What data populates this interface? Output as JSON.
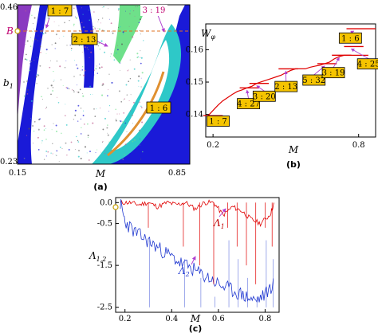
{
  "colors": {
    "red_series": "#e00000",
    "blue_series": "#2038d0",
    "label_box": "#f5c400",
    "arrow": "#b040d0",
    "map_blue": "#1a1ad8",
    "map_cyan": "#2ec8c8",
    "map_green": "#6ee08a",
    "map_orange": "#e09030"
  },
  "chart_data": [
    {
      "id": "a",
      "type": "heatmap",
      "panel_label": "(a)",
      "xlabel": "M",
      "ylabel": "b",
      "ylabel_sub": "1",
      "x_ticks": [
        "0.15",
        "0.85"
      ],
      "y_ticks": [
        "0.46",
        "0.23"
      ],
      "xlim": [
        0.15,
        0.85
      ],
      "ylim": [
        0.23,
        0.46
      ],
      "marker_label": "B",
      "marker_b1": 0.43,
      "region_labels": [
        "1 : 7",
        "2 : 13",
        "3 : 19",
        "1 : 6"
      ]
    },
    {
      "id": "b",
      "type": "line",
      "panel_label": "(b)",
      "xlabel": "M",
      "ylabel": "W",
      "ylabel_sub": "φ",
      "x_ticks": [
        "0.2",
        "0.8"
      ],
      "x_tick_values": [
        0.2,
        0.8
      ],
      "y_ticks": [
        "0.14",
        "0.15",
        "0.16"
      ],
      "y_tick_values": [
        0.14,
        0.15,
        0.16
      ],
      "xlim": [
        0.17,
        0.87
      ],
      "ylim": [
        0.133,
        0.168
      ],
      "series": [
        {
          "x": [
            0.18,
            0.2,
            0.22,
            0.24,
            0.26,
            0.28,
            0.3,
            0.32,
            0.34,
            0.36,
            0.38,
            0.4,
            0.42,
            0.44,
            0.46,
            0.48,
            0.5,
            0.52,
            0.54,
            0.56,
            0.58,
            0.6,
            0.62,
            0.64,
            0.66,
            0.68,
            0.7,
            0.72,
            0.74,
            0.76,
            0.78,
            0.8,
            0.82,
            0.84
          ],
          "y": [
            0.1396,
            0.1412,
            0.1428,
            0.1442,
            0.1452,
            0.1462,
            0.1471,
            0.1476,
            0.1482,
            0.1487,
            0.1496,
            0.1501,
            0.1506,
            0.1511,
            0.1516,
            0.1521,
            0.1529,
            0.1536,
            0.1541,
            0.1541,
            0.1541,
            0.1546,
            0.1549,
            0.1552,
            0.1557,
            0.1562,
            0.1572,
            0.1579,
            0.1583,
            0.1583,
            0.1583,
            0.1583,
            0.1583,
            0.1583
          ]
        }
      ],
      "plateaus": [
        {
          "label": "1 : 7",
          "y": 0.1396
        },
        {
          "label": "4 : 27",
          "y": 0.1482
        },
        {
          "label": "3 : 20",
          "y": 0.1496
        },
        {
          "label": "2 : 13",
          "y": 0.1541
        },
        {
          "label": "5 : 32",
          "y": 0.1557
        },
        {
          "label": "3 : 19",
          "y": 0.1583
        },
        {
          "label": "4 : 25",
          "y": 0.161
        },
        {
          "label": "1 : 6",
          "y": 0.1665
        }
      ]
    },
    {
      "id": "c",
      "type": "line",
      "panel_label": "(c)",
      "xlabel": "M",
      "ylabel": "Λ",
      "ylabel_sub": "1,2",
      "x_ticks": [
        "0.2",
        "0.4",
        "0.6",
        "0.8"
      ],
      "x_tick_values": [
        0.2,
        0.4,
        0.6,
        0.8
      ],
      "y_ticks": [
        "0.0",
        "-0.5",
        "-1.5",
        "-2.5"
      ],
      "y_tick_values": [
        0.0,
        -0.5,
        -1.5,
        -2.5
      ],
      "xlim": [
        0.16,
        0.86
      ],
      "ylim": [
        -2.62,
        0.12
      ],
      "series": [
        {
          "name": "Λ1",
          "x": [
            0.18,
            0.22,
            0.26,
            0.3,
            0.34,
            0.38,
            0.42,
            0.46,
            0.5,
            0.54,
            0.58,
            0.62,
            0.66,
            0.7,
            0.74,
            0.78,
            0.82,
            0.84
          ],
          "y": [
            0.0,
            0.0,
            -0.05,
            0.0,
            -0.1,
            0.0,
            -0.05,
            0.0,
            -0.15,
            0.0,
            0.0,
            -0.3,
            -0.1,
            -0.2,
            -0.4,
            -0.5,
            -0.3,
            0.0
          ]
        },
        {
          "name": "Λ2",
          "x": [
            0.18,
            0.2,
            0.24,
            0.28,
            0.32,
            0.36,
            0.4,
            0.44,
            0.48,
            0.52,
            0.56,
            0.6,
            0.64,
            0.68,
            0.72,
            0.76,
            0.8,
            0.84
          ],
          "y": [
            -0.02,
            -0.45,
            -0.7,
            -0.85,
            -1.0,
            -1.15,
            -1.3,
            -1.45,
            -1.55,
            -1.7,
            -1.8,
            -1.95,
            -2.05,
            -2.15,
            -2.25,
            -2.35,
            -2.2,
            -1.9
          ]
        }
      ],
      "series_labels": [
        "Λ",
        "Λ"
      ],
      "series_label_subs": [
        "1",
        "2"
      ]
    }
  ]
}
